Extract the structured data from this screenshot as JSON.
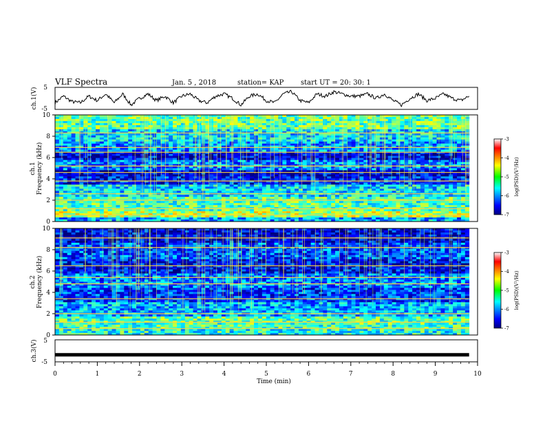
{
  "header": {
    "title": "VLF Spectra",
    "date": "Jan. 5 , 2018",
    "station": "station= KAP",
    "start": "start UT = 20: 30: 1"
  },
  "chart_data": [
    {
      "type": "line",
      "panel": "ch1-waveform",
      "ylabel": "ch.1(V)",
      "ylim": [
        -5,
        5
      ],
      "yticks": [
        "5",
        "-5"
      ],
      "xlim": [
        0,
        10
      ],
      "x_units": "min",
      "series": [
        {
          "color": "#000000",
          "x": [
            0,
            0.2,
            0.4,
            0.6,
            0.8,
            1.0,
            1.2,
            1.4,
            1.6,
            1.8,
            2.0,
            2.2,
            2.4,
            2.6,
            2.8,
            3.0,
            3.2,
            3.4,
            3.6,
            3.8,
            4.0,
            4.2,
            4.4,
            4.6,
            4.8,
            5.0,
            5.2,
            5.4,
            5.6,
            5.8,
            6.0,
            6.2,
            6.4,
            6.6,
            6.8,
            7.0,
            7.2,
            7.4,
            7.6,
            7.8,
            8.0,
            8.2,
            8.4,
            8.6,
            8.8,
            9.0,
            9.2,
            9.4,
            9.6,
            9.8
          ],
          "y": [
            -2,
            1,
            -1.5,
            -2,
            1,
            -1,
            2,
            -2,
            2,
            -3,
            0,
            2,
            -1,
            1,
            -2,
            1,
            2,
            -1,
            -2,
            1,
            2,
            0,
            -3,
            1,
            2,
            -1,
            -2,
            2,
            3,
            -1,
            -2,
            2,
            1,
            3,
            2,
            1,
            1,
            2,
            0,
            2,
            -1,
            -3,
            0,
            2,
            -1,
            0,
            2,
            0,
            -1,
            1
          ]
        }
      ]
    },
    {
      "type": "heatmap",
      "panel": "ch1-spectrogram",
      "ylabel": "ch.1\nFrequency (kHz)",
      "ylim": [
        0,
        10
      ],
      "yticks": [
        "0",
        "2",
        "4",
        "6",
        "8",
        "10"
      ],
      "xlim": [
        0,
        10
      ],
      "colorbar": {
        "label": "log(PSD)(V²/Hz)",
        "range": [
          -7,
          -3
        ],
        "ticks": [
          "-3",
          "-4",
          "-5",
          "-6",
          "-7"
        ]
      },
      "bands": [
        {
          "f0": 0.0,
          "f1": 0.4,
          "level": -5.8
        },
        {
          "f0": 0.4,
          "f1": 1.0,
          "level": -4.8
        },
        {
          "f0": 1.0,
          "f1": 2.4,
          "level": -5.2
        },
        {
          "f0": 2.4,
          "f1": 3.4,
          "level": -5.6
        },
        {
          "f0": 3.4,
          "f1": 4.3,
          "level": -6.4
        },
        {
          "f0": 4.3,
          "f1": 4.9,
          "level": -6.7
        },
        {
          "f0": 4.9,
          "f1": 5.8,
          "level": -6.0
        },
        {
          "f0": 5.8,
          "f1": 6.6,
          "level": -6.6
        },
        {
          "f0": 6.6,
          "f1": 7.5,
          "level": -5.9
        },
        {
          "f0": 7.5,
          "f1": 8.6,
          "level": -5.6
        },
        {
          "f0": 8.6,
          "f1": 10.0,
          "level": -5.1
        }
      ],
      "tones_khz": [
        0.6,
        1.2,
        2.0,
        2.6,
        3.8,
        4.6,
        5.2,
        6.5,
        6.95,
        8.3
      ]
    },
    {
      "type": "heatmap",
      "panel": "ch2-spectrogram",
      "ylabel": "ch.2\nFrequency (kHz)",
      "ylim": [
        0,
        10
      ],
      "yticks": [
        "0",
        "2",
        "4",
        "6",
        "8",
        "10"
      ],
      "xlim": [
        0,
        10
      ],
      "colorbar": {
        "label": "log(PSD)(V²/Hz)",
        "range": [
          -7,
          -3
        ],
        "ticks": [
          "-3",
          "-4",
          "-5",
          "-6",
          "-7"
        ]
      },
      "bands": [
        {
          "f0": 0.0,
          "f1": 0.6,
          "level": -5.4
        },
        {
          "f0": 0.6,
          "f1": 1.8,
          "level": -5.2
        },
        {
          "f0": 1.8,
          "f1": 3.0,
          "level": -5.8
        },
        {
          "f0": 3.0,
          "f1": 4.4,
          "level": -6.3
        },
        {
          "f0": 4.4,
          "f1": 5.8,
          "level": -6.0
        },
        {
          "f0": 5.8,
          "f1": 7.2,
          "level": -6.5
        },
        {
          "f0": 7.2,
          "f1": 8.6,
          "level": -6.2
        },
        {
          "f0": 8.6,
          "f1": 10.0,
          "level": -6.6
        }
      ],
      "tones_khz": [
        0.6,
        1.2,
        2.0,
        3.4,
        4.8,
        5.4,
        6.5,
        8.2,
        9.1
      ]
    },
    {
      "type": "line",
      "panel": "ch3-waveform",
      "ylabel": "ch.3(V)",
      "ylim": [
        -5,
        5
      ],
      "yticks": [
        "5",
        "-5"
      ],
      "xlim": [
        0,
        10
      ],
      "xlabel": "Time (min)",
      "xticks": [
        "0",
        "1",
        "2",
        "3",
        "4",
        "5",
        "6",
        "7",
        "8",
        "9",
        "10"
      ],
      "series": [
        {
          "color": "#000000",
          "x": [
            0,
            9.8
          ],
          "y": [
            -1.8,
            -1.8
          ]
        }
      ]
    }
  ],
  "colors": {
    "background": "#ffffff",
    "axis": "#000000",
    "line": "#000000"
  }
}
